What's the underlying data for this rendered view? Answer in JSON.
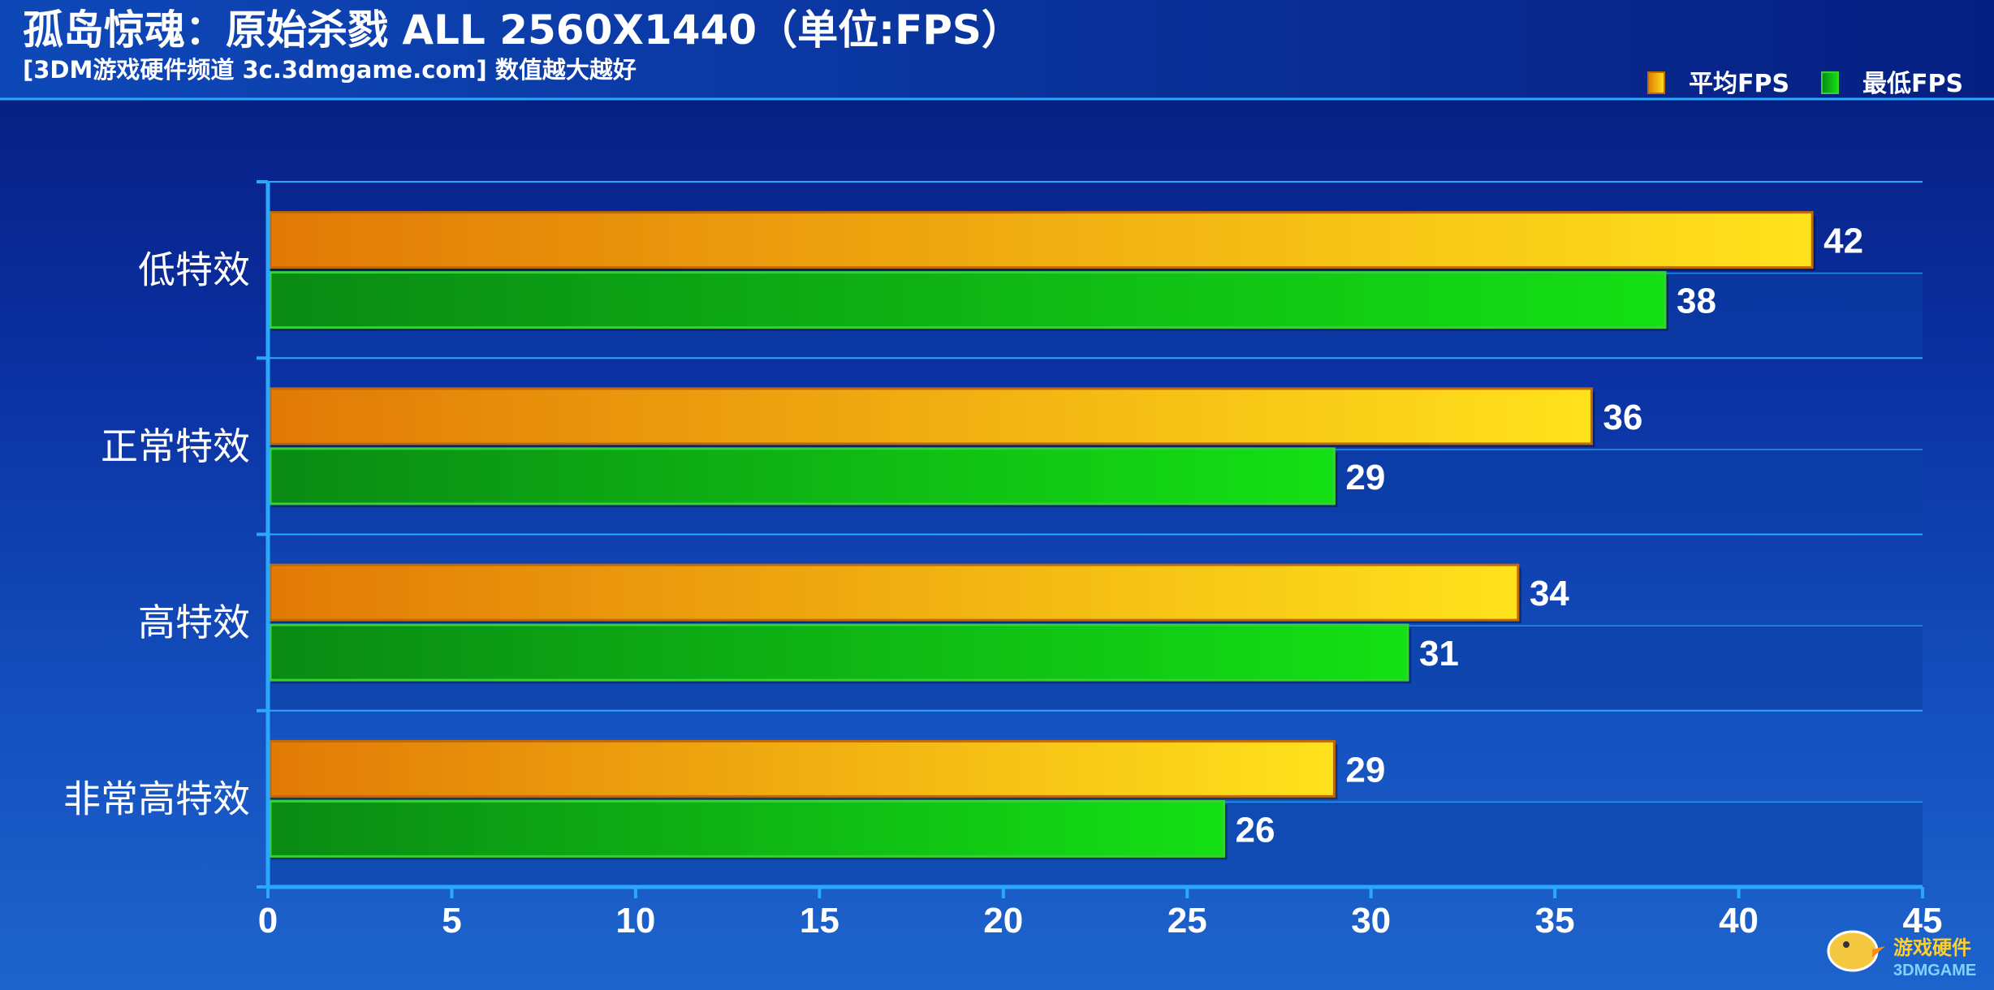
{
  "chart_data": {
    "type": "bar",
    "orientation": "horizontal",
    "title": "孤岛惊魂：原始杀戮 ALL 2560X1440（单位:FPS）",
    "subtitle": "[3DM游戏硬件频道 3c.3dmgame.com] 数值越大越好",
    "categories": [
      "低特效",
      "正常特效",
      "高特效",
      "非常高特效"
    ],
    "series": [
      {
        "name": "平均FPS",
        "values": [
          42,
          36,
          34,
          29
        ],
        "color": "#f2a20c"
      },
      {
        "name": "最低FPS",
        "values": [
          38,
          29,
          31,
          26
        ],
        "color": "#1fbe1f"
      }
    ],
    "xlim": [
      0,
      45
    ],
    "x_ticks": [
      "0",
      "5",
      "10",
      "15",
      "20",
      "25",
      "30",
      "35",
      "40",
      "45"
    ],
    "legend_position": "top-right",
    "grid": true
  },
  "watermark": {
    "text_top": "游戏硬件",
    "text_bottom": "3DMGAME"
  },
  "colors": {
    "avg_dark": "#e27a06",
    "avg_light": "#ffe21c",
    "avg_border": "#c06a05",
    "min_dark": "#0a8a14",
    "min_light": "#14e014",
    "min_border": "#34d234",
    "axis": "#2aa8ff"
  }
}
